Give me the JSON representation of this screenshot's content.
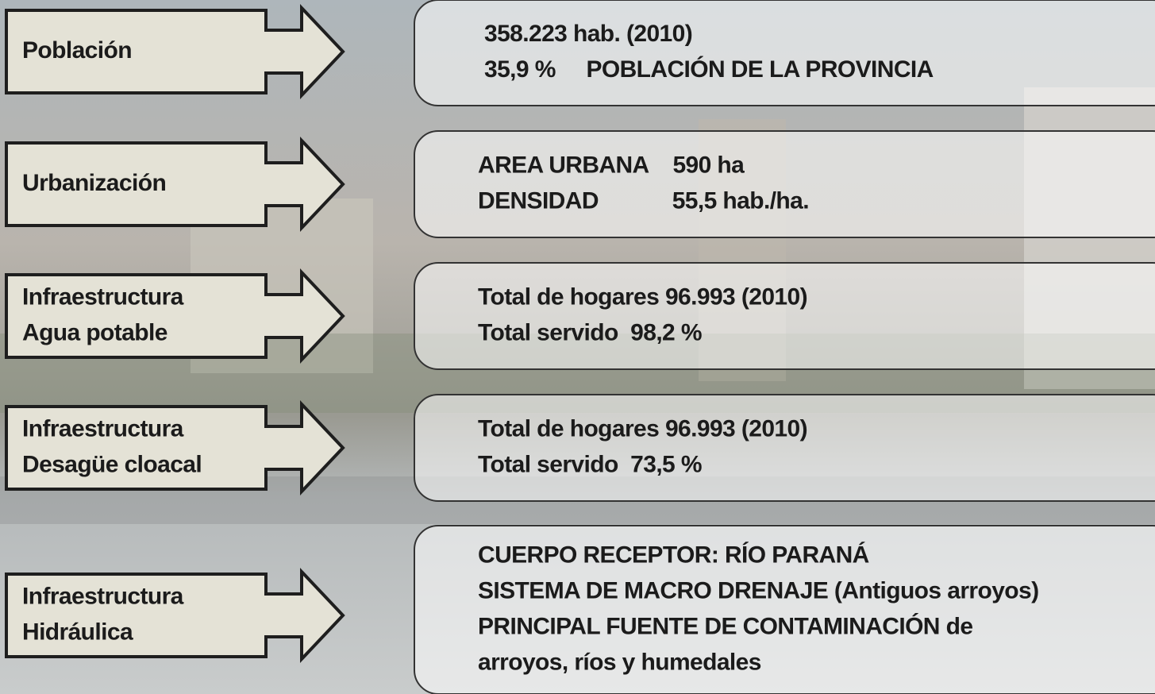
{
  "rows": [
    {
      "label": [
        "Población"
      ],
      "info": [
        "358.223 hab. (2010)",
        "35,9 %     POBLACIÓN DE LA PROVINCIA"
      ]
    },
    {
      "label": [
        "Urbanización"
      ],
      "info": [
        "AREA URBANA    590 ha",
        "DENSIDAD            55,5 hab./ha."
      ]
    },
    {
      "label": [
        "Infraestructura",
        "Agua potable"
      ],
      "info": [
        "Total de hogares 96.993 (2010)",
        "Total servido  98,2 %"
      ]
    },
    {
      "label": [
        "Infraestructura",
        "Desagüe cloacal"
      ],
      "info": [
        "Total de hogares 96.993 (2010)",
        "Total servido  73,5 %"
      ]
    },
    {
      "label": [
        "Infraestructura",
        "Hidráulica"
      ],
      "info": [
        "CUERPO RECEPTOR: RÍO PARANÁ",
        "SISTEMA DE MACRO DRENAJE (Antiguos arroyos)",
        "PRINCIPAL FUENTE DE CONTAMINACIÓN de",
        "arroyos, ríos y humedales"
      ]
    }
  ]
}
